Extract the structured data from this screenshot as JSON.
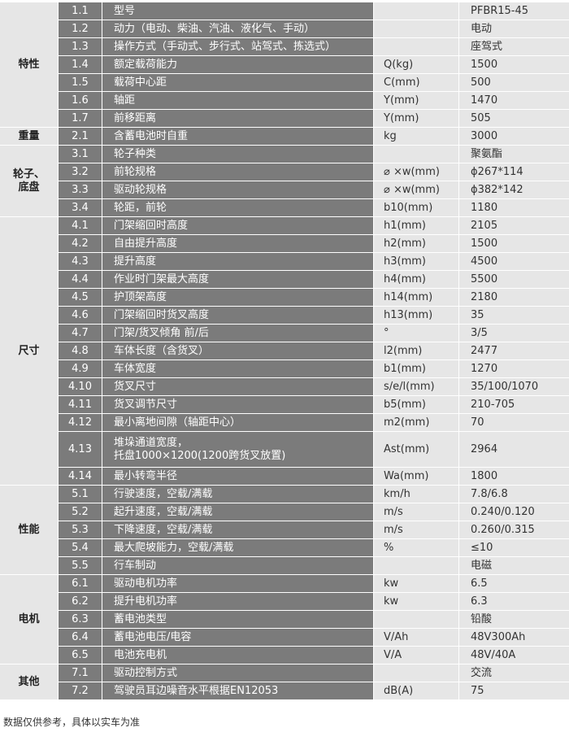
{
  "groups": [
    {
      "label": "特性",
      "rows": [
        [
          "1.1",
          "型号",
          null,
          "PFBR15-45"
        ],
        [
          "1.2",
          "动力（电动、柴油、汽油、液化气、手动）",
          null,
          "电动"
        ],
        [
          "1.3",
          "操作方式（手动式、步行式、站驾式、拣选式）",
          null,
          "座驾式"
        ],
        [
          "1.4",
          "额定载荷能力",
          "Q(kg)",
          "1500"
        ],
        [
          "1.5",
          "载荷中心距",
          "C(mm)",
          "500"
        ],
        [
          "1.6",
          "轴距",
          "Y(mm)",
          "1470"
        ],
        [
          "1.7",
          "前移距离",
          "Y(mm)",
          "505"
        ]
      ]
    },
    {
      "label": "重量",
      "rows": [
        [
          "2.1",
          "含蓄电池时自重",
          "kg",
          "3000"
        ]
      ]
    },
    {
      "label": "轮子、\n底盘",
      "rows": [
        [
          "3.1",
          "轮子种类",
          null,
          "聚氨酯"
        ],
        [
          "3.2",
          "前轮规格",
          "⌀ ×w(mm)",
          "ϕ267*114"
        ],
        [
          "3.3",
          "驱动轮规格",
          "⌀ ×w(mm)",
          "ϕ382*142"
        ],
        [
          "3.4",
          "轮距，前轮",
          "b10(mm)",
          "1180"
        ]
      ]
    },
    {
      "label": "尺寸",
      "rows": [
        [
          "4.1",
          "门架缩回时高度",
          "h1(mm)",
          "2105"
        ],
        [
          "4.2",
          "自由提升高度",
          "h2(mm)",
          "1500"
        ],
        [
          "4.3",
          "提升高度",
          "h3(mm)",
          "4500"
        ],
        [
          "4.4",
          "作业时门架最大高度",
          "h4(mm)",
          "5500"
        ],
        [
          "4.5",
          "护顶架高度",
          "h14(mm)",
          "2180"
        ],
        [
          "4.6",
          "门架缩回时货叉高度",
          "h13(mm)",
          "35"
        ],
        [
          "4.7",
          "门架/货叉倾角 前/后",
          "°",
          "3/5"
        ],
        [
          "4.8",
          "车体长度（含货叉）",
          "l2(mm)",
          "2477"
        ],
        [
          "4.9",
          "车体宽度",
          "b1(mm)",
          "1270"
        ],
        [
          "4.10",
          "货叉尺寸",
          "s/e/l(mm)",
          "35/100/1070"
        ],
        [
          "4.11",
          "货叉调节尺寸",
          "b5(mm)",
          "210-705"
        ],
        [
          "4.12",
          "最小离地间隙（轴距中心）",
          "m2(mm)",
          "70"
        ],
        [
          "4.13",
          "堆垛通道宽度，\n托盘1000×1200(1200跨货叉放置)",
          "Ast(mm)",
          "2964"
        ],
        [
          "4.14",
          "最小转弯半径",
          "Wa(mm)",
          "1800"
        ]
      ]
    },
    {
      "label": "性能",
      "rows": [
        [
          "5.1",
          "行驶速度，空载/满载",
          "km/h",
          "7.8/6.8"
        ],
        [
          "5.2",
          "起升速度，空载/满载",
          "m/s",
          "0.240/0.120"
        ],
        [
          "5.3",
          "下降速度，空载/满载",
          "m/s",
          "0.260/0.315"
        ],
        [
          "5.4",
          "最大爬坡能力，空载/满载",
          "%",
          "≤10"
        ],
        [
          "5.5",
          "行车制动",
          null,
          "电磁"
        ]
      ]
    },
    {
      "label": "电机",
      "rows": [
        [
          "6.1",
          "驱动电机功率",
          "kw",
          "6.5"
        ],
        [
          "6.2",
          "提升电机功率",
          "kw",
          "6.3"
        ],
        [
          "6.3",
          "蓄电池类型",
          null,
          "铅酸"
        ],
        [
          "6.4",
          "蓄电池电压/电容",
          "V/Ah",
          "48V300Ah"
        ],
        [
          "6.5",
          "电池充电机",
          "V/A",
          "48V/40A"
        ]
      ]
    },
    {
      "label": "其他",
      "rows": [
        [
          "7.1",
          "驱动控制方式",
          null,
          "交流"
        ],
        [
          "7.2",
          "驾驶员耳边噪音水平根据EN12053",
          "dB(A)",
          "75"
        ]
      ]
    }
  ],
  "footnote": "数据仅供参考，具体以实车为准"
}
